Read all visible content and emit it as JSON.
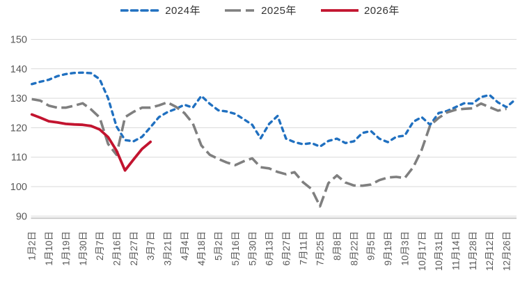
{
  "chart_data": {
    "type": "line",
    "title": "",
    "xlabel": "",
    "ylabel": "",
    "ylim": [
      90,
      150
    ],
    "y_ticks": [
      90,
      100,
      110,
      120,
      130,
      140,
      150
    ],
    "grid": true,
    "legend_position": "top-center",
    "background_color": "#FFFFFF",
    "gridline_color": "#D9D9D9",
    "axis_line_color": "#C6C6C6",
    "axis_text_color": "#595959",
    "x_labels": [
      "1月2日",
      "1月10日",
      "1月19日",
      "1月30日",
      "2月7日",
      "2月16日",
      "2月27日",
      "3月7日",
      "3月21日",
      "4月4日",
      "4月18日",
      "5月2日",
      "5月16日",
      "5月30日",
      "6月13日",
      "6月27日",
      "7月11日",
      "7月25日",
      "8月8日",
      "8月22日",
      "9月5日",
      "9月19日",
      "10月3日",
      "10月17日",
      "10月31日",
      "11月14日",
      "11月28日",
      "12月12日",
      "12月26日"
    ],
    "x_note": "points use fractional label index; .5 values are unlabeled mid-week data points",
    "series": [
      {
        "name": "2024年",
        "color": "#2070C0",
        "line_style": "dashed-short",
        "points": [
          [
            0,
            134.8
          ],
          [
            0.5,
            135.6
          ],
          [
            1,
            136.3
          ],
          [
            1.5,
            137.5
          ],
          [
            2,
            138.2
          ],
          [
            2.5,
            138.6
          ],
          [
            3,
            138.7
          ],
          [
            3.5,
            138.5
          ],
          [
            4,
            136.5
          ],
          [
            4.5,
            130.0
          ],
          [
            5,
            120.4
          ],
          [
            5.5,
            115.8
          ],
          [
            6,
            115.4
          ],
          [
            6.5,
            116.9
          ],
          [
            7,
            120.2
          ],
          [
            7.5,
            123.6
          ],
          [
            8,
            125.3
          ],
          [
            8.5,
            126.4
          ],
          [
            9,
            127.8
          ],
          [
            9.5,
            126.8
          ],
          [
            10,
            130.8
          ],
          [
            10.5,
            128.1
          ],
          [
            11,
            125.9
          ],
          [
            11.5,
            125.5
          ],
          [
            12,
            124.7
          ],
          [
            12.5,
            122.9
          ],
          [
            13,
            121.0
          ],
          [
            13.5,
            116.4
          ],
          [
            14,
            121.3
          ],
          [
            14.5,
            124.0
          ],
          [
            15,
            116.3
          ],
          [
            15.5,
            115.1
          ],
          [
            16,
            114.4
          ],
          [
            16.5,
            114.8
          ],
          [
            17,
            113.6
          ],
          [
            17.5,
            115.5
          ],
          [
            18,
            116.3
          ],
          [
            18.5,
            114.8
          ],
          [
            19,
            115.4
          ],
          [
            19.5,
            118.2
          ],
          [
            20,
            118.9
          ],
          [
            20.5,
            116.3
          ],
          [
            21,
            115.1
          ],
          [
            21.5,
            116.9
          ],
          [
            22,
            117.3
          ],
          [
            22.5,
            122.0
          ],
          [
            23,
            123.6
          ],
          [
            23.5,
            121.0
          ],
          [
            24,
            125.0
          ],
          [
            24.5,
            125.7
          ],
          [
            25,
            127.0
          ],
          [
            25.5,
            128.3
          ],
          [
            26,
            128.2
          ],
          [
            26.5,
            130.4
          ],
          [
            27,
            131.1
          ],
          [
            27.5,
            128.6
          ],
          [
            28,
            127.0
          ],
          [
            28.45,
            129.2
          ]
        ]
      },
      {
        "name": "2025年",
        "color": "#7F7F7F",
        "line_style": "dashed-long",
        "points": [
          [
            0,
            129.7
          ],
          [
            0.5,
            129.2
          ],
          [
            1,
            127.5
          ],
          [
            1.5,
            126.8
          ],
          [
            2,
            126.8
          ],
          [
            2.5,
            127.5
          ],
          [
            3,
            128.3
          ],
          [
            3.5,
            126.2
          ],
          [
            4,
            123.5
          ],
          [
            4.5,
            114.5
          ],
          [
            5,
            110.8
          ],
          [
            5.5,
            123.6
          ],
          [
            6,
            125.4
          ],
          [
            6.5,
            126.8
          ],
          [
            7,
            126.8
          ],
          [
            7.5,
            127.6
          ],
          [
            8,
            128.6
          ],
          [
            8.5,
            127.1
          ],
          [
            9,
            125.0
          ],
          [
            9.5,
            121.5
          ],
          [
            10,
            114.0
          ],
          [
            10.5,
            110.8
          ],
          [
            11,
            109.4
          ],
          [
            11.5,
            108.2
          ],
          [
            12,
            107.3
          ],
          [
            12.5,
            108.6
          ],
          [
            13,
            109.6
          ],
          [
            13.5,
            106.6
          ],
          [
            14,
            106.2
          ],
          [
            14.5,
            105.0
          ],
          [
            15,
            104.2
          ],
          [
            15.5,
            104.9
          ],
          [
            16,
            101.5
          ],
          [
            16.5,
            99.2
          ],
          [
            17,
            93.3
          ],
          [
            17.5,
            101.2
          ],
          [
            18,
            103.8
          ],
          [
            18.5,
            101.4
          ],
          [
            19,
            100.4
          ],
          [
            19.5,
            100.3
          ],
          [
            20,
            100.7
          ],
          [
            20.5,
            102.2
          ],
          [
            21,
            103.1
          ],
          [
            21.5,
            103.3
          ],
          [
            22,
            102.9
          ],
          [
            22.5,
            106.6
          ],
          [
            23,
            112.5
          ],
          [
            23.5,
            120.8
          ],
          [
            24,
            123.3
          ],
          [
            24.5,
            125.2
          ],
          [
            25,
            126.1
          ],
          [
            25.5,
            126.4
          ],
          [
            26,
            126.6
          ],
          [
            26.5,
            128.2
          ],
          [
            27,
            127.0
          ],
          [
            27.5,
            125.8
          ],
          [
            28,
            126.4
          ]
        ]
      },
      {
        "name": "2026年",
        "color": "#C2142F",
        "line_style": "solid",
        "points": [
          [
            0,
            124.5
          ],
          [
            0.5,
            123.4
          ],
          [
            1,
            122.2
          ],
          [
            1.5,
            121.8
          ],
          [
            2,
            121.3
          ],
          [
            2.5,
            121.1
          ],
          [
            3,
            121.0
          ],
          [
            3.5,
            120.6
          ],
          [
            4,
            119.4
          ],
          [
            4.5,
            116.8
          ],
          [
            5,
            112.2
          ],
          [
            5.5,
            105.5
          ],
          [
            6,
            109.2
          ],
          [
            6.5,
            112.8
          ],
          [
            7,
            115.2
          ]
        ]
      }
    ]
  }
}
